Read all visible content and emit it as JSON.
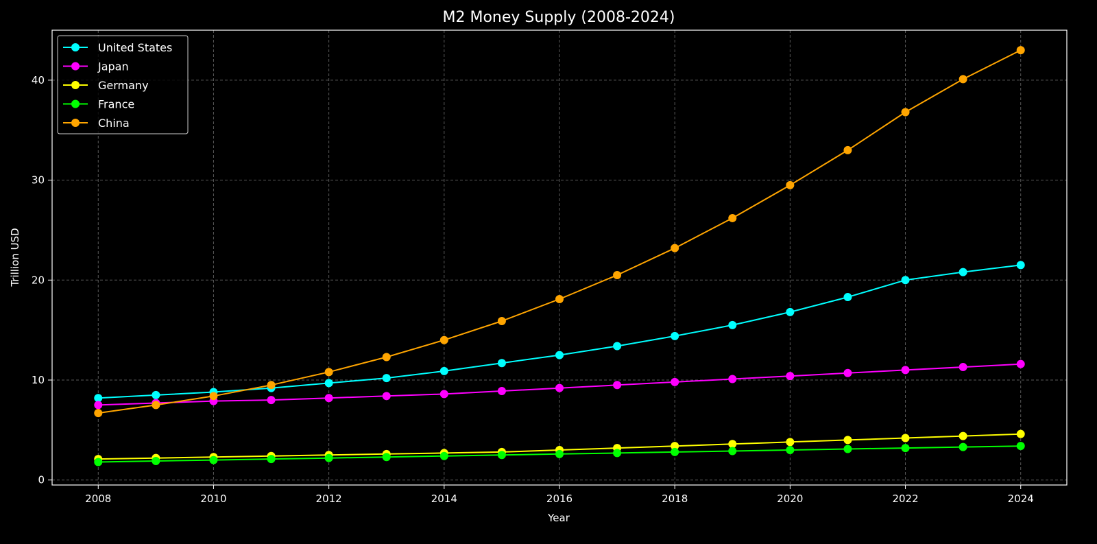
{
  "chart_data": {
    "type": "line",
    "title": "M2 Money Supply (2008-2024)",
    "xlabel": "Year",
    "ylabel": "Trillion USD",
    "x": [
      2008,
      2009,
      2010,
      2011,
      2012,
      2013,
      2014,
      2015,
      2016,
      2017,
      2018,
      2019,
      2020,
      2021,
      2022,
      2023,
      2024
    ],
    "xlim": [
      2007.2,
      2024.8
    ],
    "ylim": [
      -0.5,
      45
    ],
    "x_ticks": [
      2008,
      2010,
      2012,
      2014,
      2016,
      2018,
      2020,
      2022,
      2024
    ],
    "y_ticks": [
      0,
      10,
      20,
      30,
      40
    ],
    "grid": true,
    "grid_style": "dashed",
    "legend_position": "upper-left",
    "series": [
      {
        "name": "United States",
        "color": "#00ffff",
        "values": [
          8.2,
          8.5,
          8.8,
          9.2,
          9.7,
          10.2,
          10.9,
          11.7,
          12.5,
          13.4,
          14.4,
          15.5,
          16.8,
          18.3,
          20.0,
          20.8,
          21.5
        ]
      },
      {
        "name": "Japan",
        "color": "#ff00ff",
        "values": [
          7.5,
          7.7,
          7.9,
          8.0,
          8.2,
          8.4,
          8.6,
          8.9,
          9.2,
          9.5,
          9.8,
          10.1,
          10.4,
          10.7,
          11.0,
          11.3,
          11.6
        ]
      },
      {
        "name": "Germany",
        "color": "#ffff00",
        "values": [
          2.1,
          2.2,
          2.3,
          2.4,
          2.5,
          2.6,
          2.7,
          2.8,
          3.0,
          3.2,
          3.4,
          3.6,
          3.8,
          4.0,
          4.2,
          4.4,
          4.6
        ]
      },
      {
        "name": "France",
        "color": "#00ff00",
        "values": [
          1.8,
          1.9,
          2.0,
          2.1,
          2.2,
          2.3,
          2.4,
          2.5,
          2.6,
          2.7,
          2.8,
          2.9,
          3.0,
          3.1,
          3.2,
          3.3,
          3.4
        ]
      },
      {
        "name": "China",
        "color": "#ffa500",
        "values": [
          6.7,
          7.5,
          8.4,
          9.5,
          10.8,
          12.3,
          14.0,
          15.9,
          18.1,
          20.5,
          23.2,
          26.2,
          29.5,
          33.0,
          36.8,
          40.1,
          43.0
        ]
      }
    ]
  }
}
